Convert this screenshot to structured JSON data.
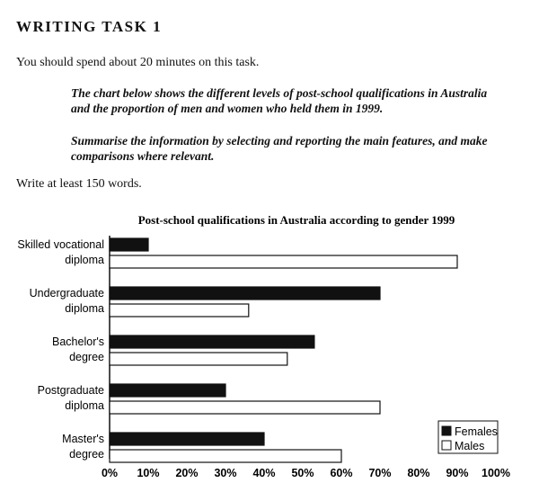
{
  "page": {
    "task_title": "WRITING TASK 1",
    "instruction": "You should spend about 20 minutes on this task.",
    "prompt_1": "The chart below shows the different levels of post-school qualifications in Australia and the proportion of men and women who held them in 1999.",
    "prompt_2": "Summarise the information by selecting and reporting the main features, and make comparisons where relevant.",
    "word_count": "Write at least 150 words."
  },
  "chart_data": {
    "type": "bar",
    "orientation": "horizontal",
    "title": "Post-school qualifications in Australia according to gender 1999",
    "categories": [
      [
        "Skilled vocational",
        "diploma"
      ],
      [
        "Undergraduate",
        "diploma"
      ],
      [
        "Bachelor's",
        "degree"
      ],
      [
        "Postgraduate",
        "diploma"
      ],
      [
        "Master's",
        "degree"
      ]
    ],
    "series": [
      {
        "name": "Females",
        "values": [
          10,
          70,
          53,
          30,
          40
        ],
        "color": "#111111"
      },
      {
        "name": "Males",
        "values": [
          90,
          36,
          46,
          70,
          60
        ],
        "color": "#ffffff"
      }
    ],
    "xlim": [
      0,
      100
    ],
    "xticks": [
      "0%",
      "10%",
      "20%",
      "30%",
      "40%",
      "50%",
      "60%",
      "70%",
      "80%",
      "90%",
      "100%"
    ],
    "legend_position": "bottom-right",
    "grid": false
  }
}
